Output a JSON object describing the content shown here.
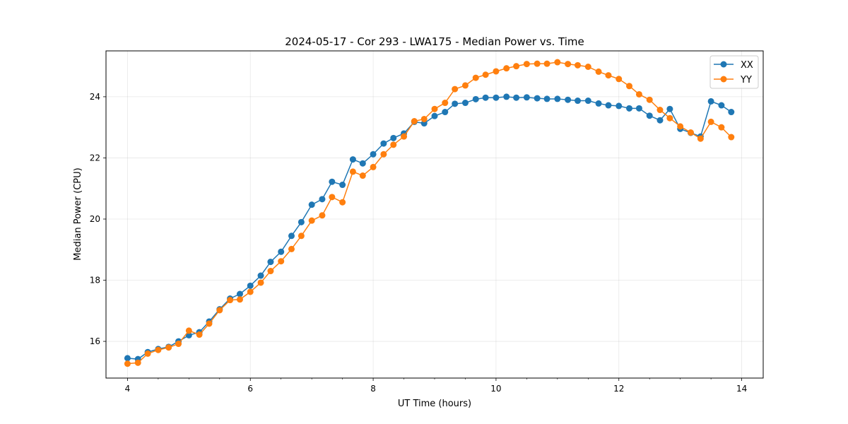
{
  "chart_data": {
    "type": "line",
    "title": "2024-05-17 - Cor 293 - LWA175 - Median Power vs. Time",
    "xlabel": "UT Time (hours)",
    "ylabel": "Median Power (CPU)",
    "xlim": [
      3.65,
      14.35
    ],
    "ylim": [
      14.8,
      25.5
    ],
    "xticks": [
      4,
      6,
      8,
      10,
      12,
      14
    ],
    "xtick_labels": [
      "4",
      "6",
      "8",
      "10",
      "12",
      "14"
    ],
    "yticks": [
      16,
      18,
      20,
      22,
      24
    ],
    "ytick_labels": [
      "16",
      "18",
      "20",
      "22",
      "24"
    ],
    "grid": true,
    "legend": "top-right",
    "x": [
      4.0,
      4.17,
      4.33,
      4.5,
      4.67,
      4.83,
      5.0,
      5.17,
      5.33,
      5.5,
      5.67,
      5.83,
      6.0,
      6.17,
      6.33,
      6.5,
      6.67,
      6.83,
      7.0,
      7.17,
      7.33,
      7.5,
      7.67,
      7.83,
      8.0,
      8.17,
      8.33,
      8.5,
      8.67,
      8.83,
      9.0,
      9.17,
      9.33,
      9.5,
      9.67,
      9.83,
      10.0,
      10.17,
      10.33,
      10.5,
      10.67,
      10.83,
      11.0,
      11.17,
      11.33,
      11.5,
      11.67,
      11.83,
      12.0,
      12.17,
      12.33,
      12.5,
      12.67,
      12.83,
      13.0,
      13.17,
      13.33,
      13.5,
      13.67,
      13.83
    ],
    "series": [
      {
        "name": "XX",
        "color": "#1f77b4",
        "values": [
          15.45,
          15.42,
          15.65,
          15.75,
          15.82,
          16.0,
          16.2,
          16.3,
          16.65,
          17.05,
          17.4,
          17.55,
          17.82,
          18.15,
          18.6,
          18.93,
          19.45,
          19.9,
          20.47,
          20.65,
          21.22,
          21.12,
          21.95,
          21.82,
          22.12,
          22.47,
          22.65,
          22.8,
          23.18,
          23.13,
          23.37,
          23.5,
          23.77,
          23.8,
          23.92,
          23.97,
          23.97,
          24.0,
          23.97,
          23.98,
          23.95,
          23.93,
          23.93,
          23.9,
          23.87,
          23.87,
          23.78,
          23.72,
          23.7,
          23.62,
          23.62,
          23.38,
          23.23,
          23.6,
          22.95,
          22.82,
          22.7,
          23.85,
          23.72,
          23.5
        ]
      },
      {
        "name": "YY",
        "color": "#ff7f0e",
        "values": [
          15.27,
          15.3,
          15.6,
          15.72,
          15.8,
          15.92,
          16.35,
          16.22,
          16.58,
          17.02,
          17.35,
          17.37,
          17.62,
          17.92,
          18.3,
          18.62,
          19.02,
          19.45,
          19.95,
          20.12,
          20.72,
          20.55,
          21.55,
          21.42,
          21.7,
          22.12,
          22.43,
          22.7,
          23.2,
          23.27,
          23.6,
          23.8,
          24.25,
          24.37,
          24.62,
          24.72,
          24.83,
          24.93,
          25.0,
          25.07,
          25.08,
          25.08,
          25.13,
          25.07,
          25.03,
          24.98,
          24.82,
          24.7,
          24.58,
          24.35,
          24.08,
          23.9,
          23.57,
          23.3,
          23.03,
          22.83,
          22.63,
          23.18,
          23.0,
          22.68
        ]
      }
    ]
  }
}
